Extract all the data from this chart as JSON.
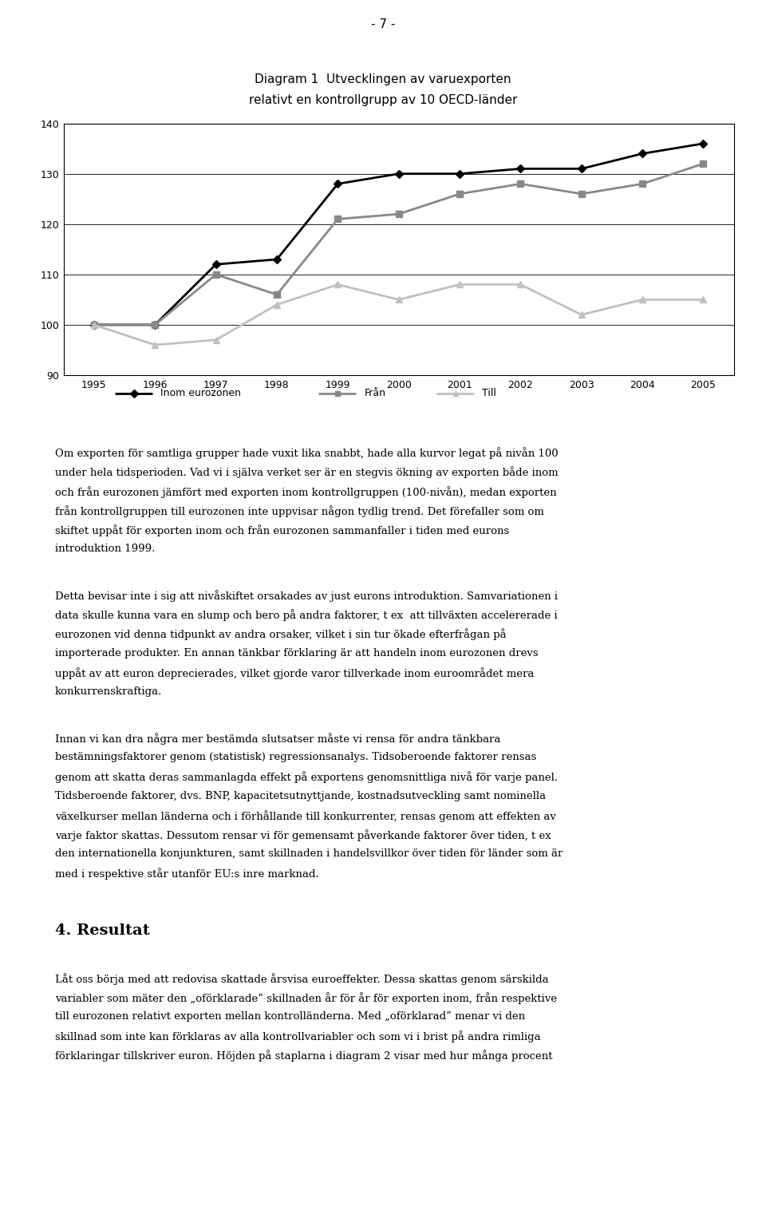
{
  "page_number": "- 7 -",
  "title_line1": "Diagram 1  Utvecklingen av varuexporten",
  "title_line2": "relativt en kontrollgrupp av 10 OECD-länder",
  "years": [
    1995,
    1996,
    1997,
    1998,
    1999,
    2000,
    2001,
    2002,
    2003,
    2004,
    2005
  ],
  "inom_eurozonen": [
    100,
    100,
    112,
    113,
    128,
    130,
    130,
    131,
    131,
    134,
    136
  ],
  "fran": [
    100,
    100,
    110,
    106,
    121,
    122,
    126,
    128,
    126,
    128,
    132
  ],
  "till": [
    100,
    96,
    97,
    104,
    108,
    105,
    108,
    108,
    102,
    105,
    105
  ],
  "ylim": [
    90,
    140
  ],
  "yticks": [
    90,
    100,
    110,
    120,
    130,
    140
  ],
  "legend_labels": [
    "Inom eurozonen",
    "Från",
    "Till"
  ],
  "inom_color": "#000000",
  "fran_color": "#888888",
  "till_color": "#c0c0c0",
  "body_text_1": [
    "Om exporten för samtliga grupper hade vuxit lika snabbt, hade alla kurvor legat på nivån 100",
    "under hela tidsperioden. Vad vi i själva verket ser är en stegvis ökning av exporten både inom",
    "och från eurozonen jämfört med exporten inom kontrollgruppen (100-nivån), medan exporten",
    "från kontrollgruppen till eurozonen inte uppvisar någon tydlig trend. Det förefaller som om",
    "skiftet uppåt för exporten inom och från eurozonen sammanfaller i tiden med eurons",
    "introduktion 1999."
  ],
  "body_text_2": [
    "Detta bevisar inte i sig att nivåskiftet orsakades av just eurons introduktion. Samvariationen i",
    "data skulle kunna vara en slump och bero på andra faktorer, t ex  att tillväxten accelererade i",
    "eurozonen vid denna tidpunkt av andra orsaker, vilket i sin tur ökade efterfrågan på",
    "importerade produkter. En annan tänkbar förklaring är att handeln inom eurozonen drevs",
    "uppåt av att euron deprecierades, vilket gjorde varor tillverkade inom euroområdet mera",
    "konkurrenskraftiga."
  ],
  "body_text_3": [
    "Innan vi kan dra några mer bestämda slutsatser måste vi rensa för andra tänkbara",
    "bestämningsfaktorer genom (statistisk) regressionsanalys. Tidsoberoende faktorer rensas",
    "genom att skatta deras sammanlagda effekt på exportens genomsnittliga nivå för varje panel.",
    "Tidsberoende faktorer, dvs. BNP, kapacitetsutnyttjande, kostnadsutveckling samt nominella",
    "växelkurser mellan länderna och i förhållande till konkurrenter, rensas genom att effekten av",
    "varje faktor skattas. Dessutom rensar vi för gemensamt påverkande faktorer över tiden, t ex",
    "den internationella konjunkturen, samt skillnaden i handelsvillkor över tiden för länder som är",
    "med i respektive står utanför EU:s inre marknad."
  ],
  "heading4": "4. Resultat",
  "body_text_4": [
    "Låt oss börja med att redovisa skattade årsvisa euroeffekter. Dessa skattas genom särskilda",
    "variabler som mäter den „oförklarade” skillnaden år för år för exporten inom, från respektive",
    "till eurozonen relativt exporten mellan kontrolländerna. Med „oförklarad” menar vi den",
    "skillnad som inte kan förklaras av alla kontrollvariabler och som vi i brist på andra rimliga",
    "förklaringar tillskriver euron. Höjden på staplarna i diagram 2 visar med hur många procent"
  ]
}
